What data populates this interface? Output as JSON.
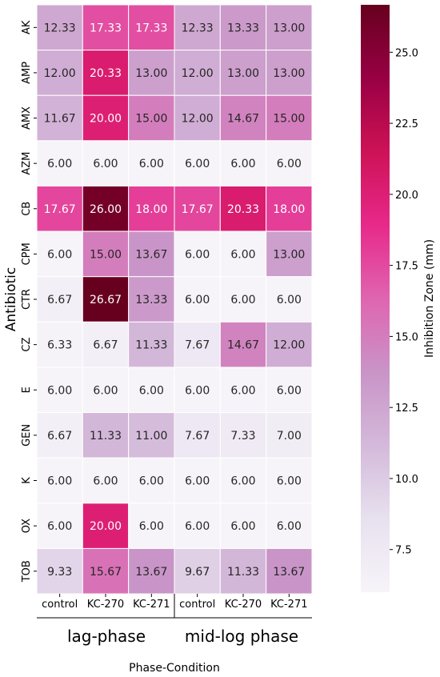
{
  "chart_data": {
    "type": "heatmap",
    "ylabel": "Antibiotic",
    "xlabel": "Phase-Condition",
    "rows": [
      "AK",
      "AMP",
      "AMX",
      "AZM",
      "CB",
      "CPM",
      "CTR",
      "CZ",
      "E",
      "GEN",
      "K",
      "OX",
      "TOB"
    ],
    "columns": [
      "control",
      "KC-270",
      "KC-271",
      "control",
      "KC-270",
      "KC-271"
    ],
    "groups": [
      {
        "label": "lag-phase",
        "columns": [
          0,
          1,
          2
        ]
      },
      {
        "label": "mid-log phase",
        "columns": [
          3,
          4,
          5
        ]
      }
    ],
    "values": [
      [
        12.33,
        17.33,
        17.33,
        12.33,
        13.33,
        13.0
      ],
      [
        12.0,
        20.33,
        13.0,
        12.0,
        13.0,
        13.0
      ],
      [
        11.67,
        20.0,
        15.0,
        12.0,
        14.67,
        15.0
      ],
      [
        6.0,
        6.0,
        6.0,
        6.0,
        6.0,
        6.0
      ],
      [
        17.67,
        26.0,
        18.0,
        17.67,
        20.33,
        18.0
      ],
      [
        6.0,
        15.0,
        13.67,
        6.0,
        6.0,
        13.0
      ],
      [
        6.67,
        26.67,
        13.33,
        6.0,
        6.0,
        6.0
      ],
      [
        6.33,
        6.67,
        11.33,
        7.67,
        14.67,
        12.0
      ],
      [
        6.0,
        6.0,
        6.0,
        6.0,
        6.0,
        6.0
      ],
      [
        6.67,
        11.33,
        11.0,
        7.67,
        7.33,
        7.0
      ],
      [
        6.0,
        6.0,
        6.0,
        6.0,
        6.0,
        6.0
      ],
      [
        6.0,
        20.0,
        6.0,
        6.0,
        6.0,
        6.0
      ],
      [
        9.33,
        15.67,
        13.67,
        9.67,
        11.33,
        13.67
      ]
    ],
    "colorbar": {
      "label": "Inhibition Zone (mm)",
      "range": [
        6.0,
        26.67
      ],
      "ticks": [
        7.5,
        10.0,
        12.5,
        15.0,
        17.5,
        20.0,
        22.5,
        25.0
      ],
      "tick_labels": [
        "7.5",
        "10.0",
        "12.5",
        "15.0",
        "17.5",
        "20.0",
        "22.5",
        "25.0"
      ]
    },
    "colormap": [
      "#f7f4f9",
      "#e7e1ef",
      "#d4b9da",
      "#c994c7",
      "#df65b0",
      "#e7298a",
      "#ce1256",
      "#980043",
      "#67001f"
    ],
    "light_text_threshold": 17.0
  }
}
